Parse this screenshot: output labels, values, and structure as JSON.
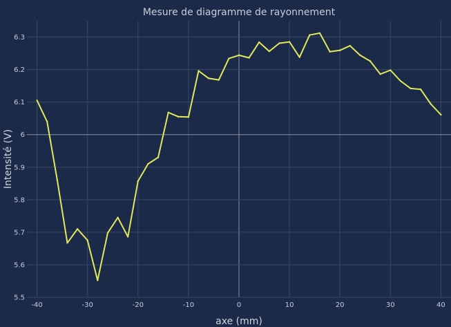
{
  "chart_data": {
    "type": "line",
    "title": "Mesure de diagramme de rayonnement",
    "xlabel": "axe (mm)",
    "ylabel": "Intensité (V)",
    "xlim": [
      -42,
      42
    ],
    "ylim": [
      5.5,
      6.35
    ],
    "xticks": [
      -40,
      -30,
      -20,
      -10,
      0,
      10,
      20,
      30,
      40
    ],
    "yticks": [
      5.5,
      5.6,
      5.7,
      5.8,
      5.9,
      6,
      6.1,
      6.2,
      6.3
    ],
    "yticklabels": [
      "5.5",
      "5.6",
      "5.7",
      "5.8",
      "5.9",
      "6",
      "6.1",
      "6.2",
      "6.3"
    ],
    "grid": true,
    "colors": {
      "background": "#1c2a4a",
      "grid": "#3a4766",
      "zero_line": "#8a93a8",
      "line": "#e3e85a"
    },
    "series": [
      {
        "x": [
          -40,
          -38,
          -36,
          -34,
          -32,
          -30,
          -28,
          -26,
          -24,
          -22,
          -20,
          -18,
          -16,
          -14,
          -12,
          -10,
          -8,
          -6,
          -4,
          -2,
          0,
          2,
          4,
          6,
          8,
          10,
          12,
          14,
          16,
          18,
          20,
          22,
          24,
          26,
          28,
          30,
          32,
          34,
          36,
          38,
          40
        ],
        "values": [
          6.105,
          6.04,
          5.86,
          5.667,
          5.71,
          5.675,
          5.552,
          5.698,
          5.745,
          5.686,
          5.857,
          5.91,
          5.93,
          6.068,
          6.055,
          6.054,
          6.196,
          6.173,
          6.168,
          6.234,
          6.244,
          6.236,
          6.284,
          6.256,
          6.281,
          6.285,
          6.238,
          6.306,
          6.312,
          6.255,
          6.259,
          6.273,
          6.244,
          6.226,
          6.186,
          6.198,
          6.165,
          6.142,
          6.139,
          6.094,
          6.061
        ]
      }
    ]
  }
}
